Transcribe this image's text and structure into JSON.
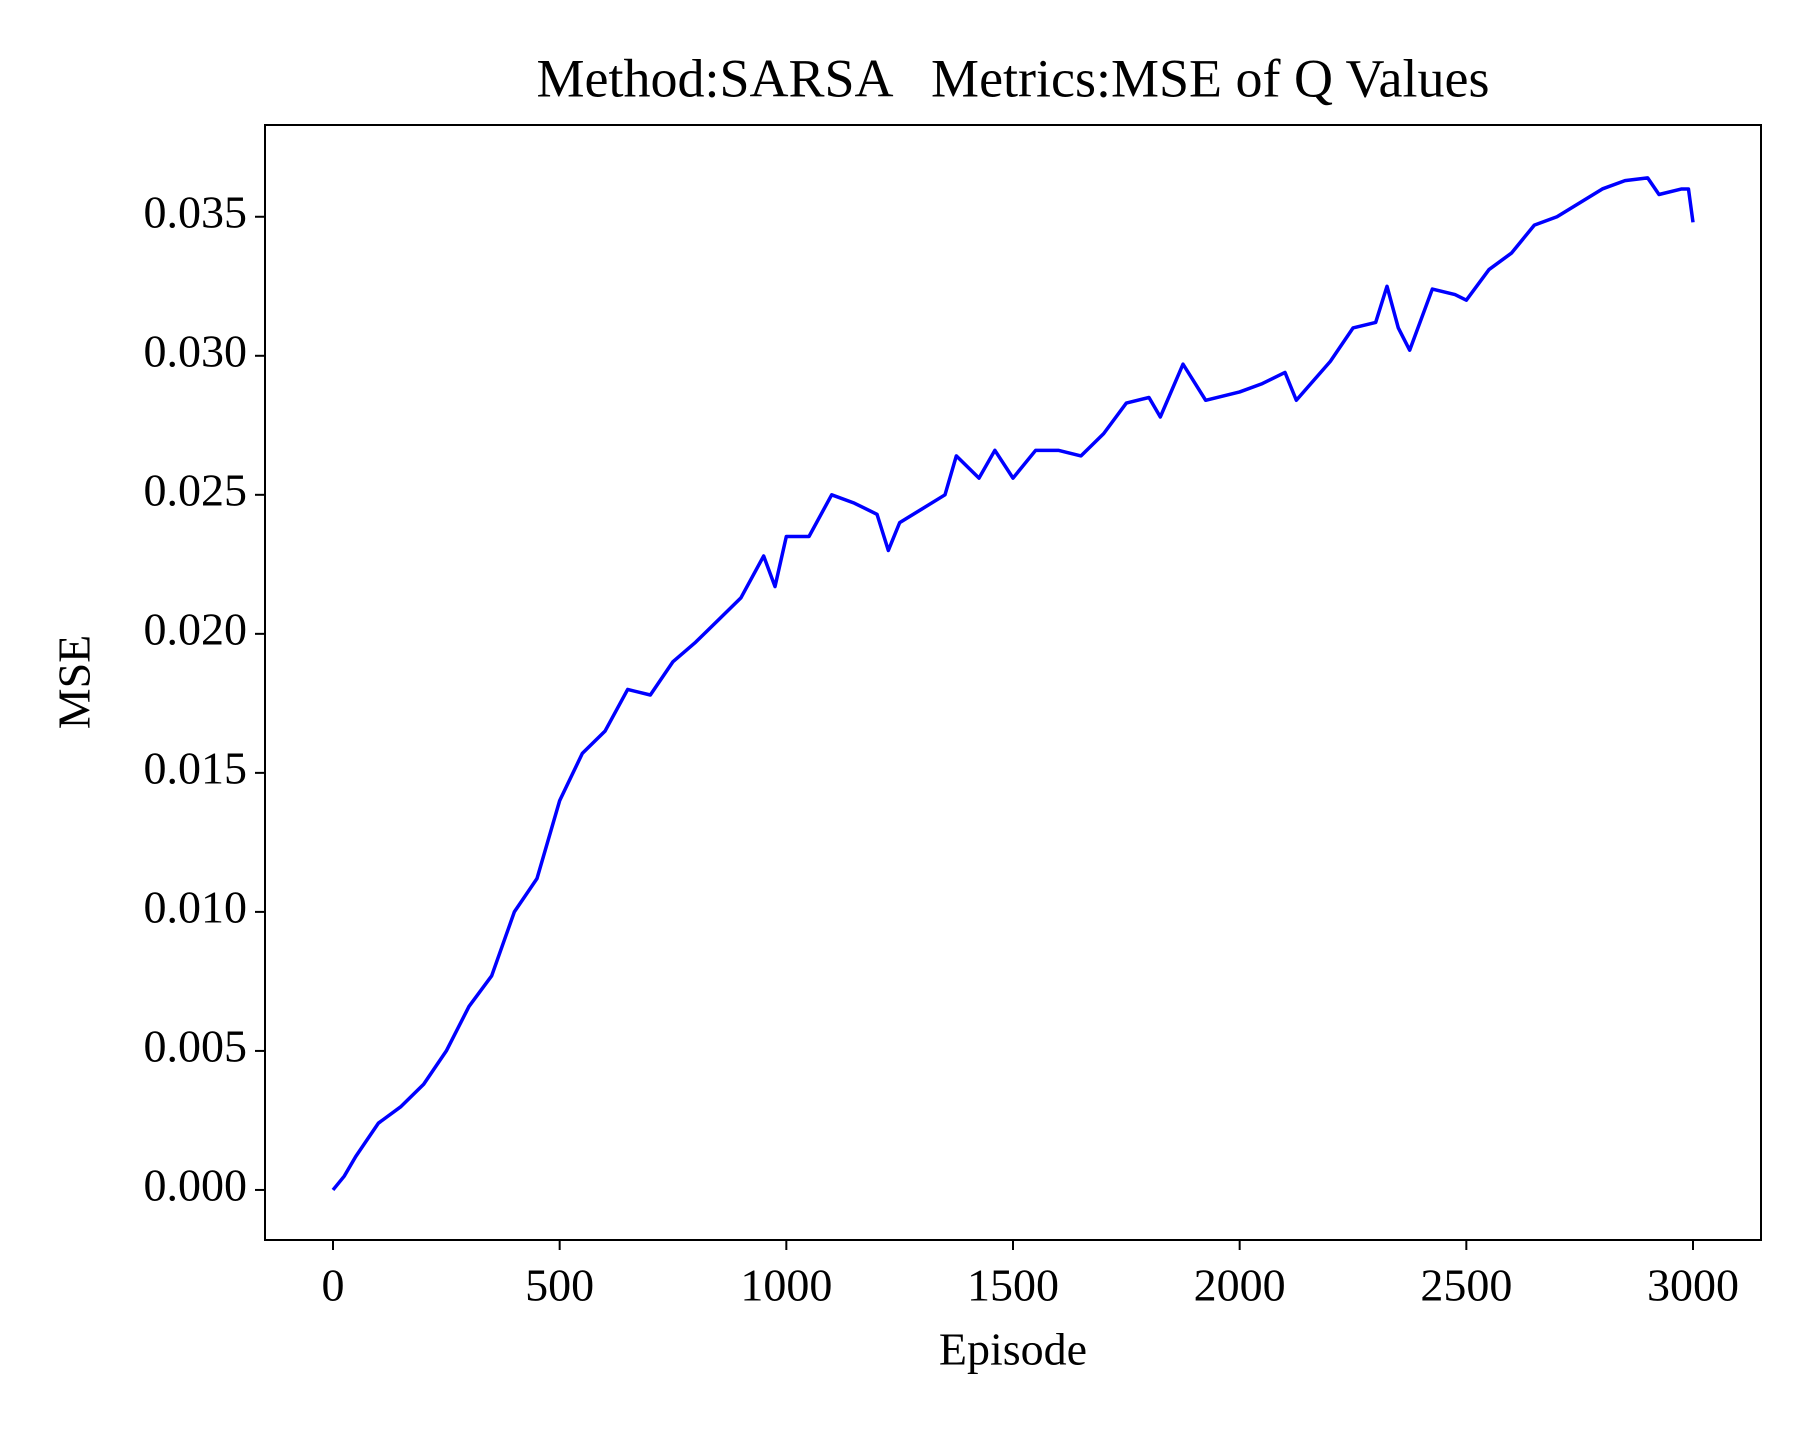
{
  "chart_data": {
    "type": "line",
    "title": "Method:SARSA   Metrics:MSE of Q Values",
    "x_label": "Episode",
    "y_label": "MSE",
    "x": [
      0,
      25,
      50,
      100,
      150,
      200,
      250,
      300,
      350,
      400,
      450,
      500,
      550,
      600,
      650,
      700,
      750,
      800,
      850,
      900,
      950,
      975,
      1000,
      1050,
      1100,
      1150,
      1200,
      1225,
      1250,
      1300,
      1350,
      1375,
      1425,
      1460,
      1500,
      1550,
      1600,
      1650,
      1700,
      1750,
      1800,
      1825,
      1875,
      1925,
      2000,
      2050,
      2100,
      2125,
      2200,
      2250,
      2300,
      2325,
      2350,
      2375,
      2425,
      2475,
      2500,
      2550,
      2600,
      2650,
      2700,
      2750,
      2800,
      2850,
      2900,
      2925,
      2975,
      2990,
      3000
    ],
    "series": [
      {
        "name": "MSE",
        "color": "#0000ff",
        "values": [
          0.0,
          0.0005,
          0.0012,
          0.0024,
          0.003,
          0.0038,
          0.005,
          0.0066,
          0.0077,
          0.01,
          0.0112,
          0.014,
          0.0157,
          0.0165,
          0.018,
          0.0178,
          0.019,
          0.0197,
          0.0205,
          0.0213,
          0.0228,
          0.0217,
          0.0235,
          0.0235,
          0.025,
          0.0247,
          0.0243,
          0.023,
          0.024,
          0.0245,
          0.025,
          0.0264,
          0.0256,
          0.0266,
          0.0256,
          0.0266,
          0.0266,
          0.0264,
          0.0272,
          0.0283,
          0.0285,
          0.0278,
          0.0297,
          0.0284,
          0.0287,
          0.029,
          0.0294,
          0.0284,
          0.0298,
          0.031,
          0.0312,
          0.0325,
          0.031,
          0.0302,
          0.0324,
          0.0322,
          0.032,
          0.0331,
          0.0337,
          0.0347,
          0.035,
          0.0355,
          0.036,
          0.0363,
          0.0364,
          0.0358,
          0.036,
          0.036,
          0.0348
        ]
      }
    ],
    "xlim": [
      -150,
      3150
    ],
    "ylim": [
      -0.0018,
      0.0383
    ],
    "xticks": [
      0,
      500,
      1000,
      1500,
      2000,
      2500,
      3000
    ],
    "yticks": [
      {
        "value": 0,
        "label": "0.000"
      },
      0.005,
      {
        "value": 0.01,
        "label": "0.010"
      },
      0.015,
      {
        "value": 0.02,
        "label": "0.020"
      },
      0.025,
      {
        "value": 0.03,
        "label": "0.030"
      },
      0.035
    ],
    "grid": false
  }
}
